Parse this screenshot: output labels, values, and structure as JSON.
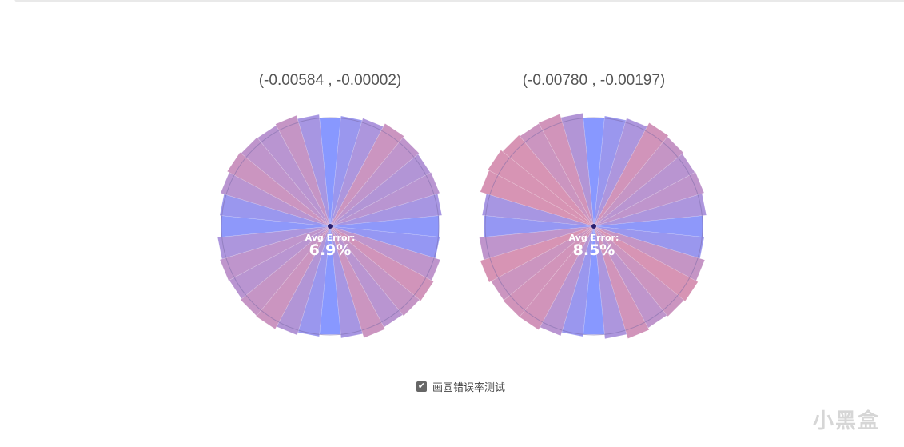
{
  "charts": [
    {
      "title": "(-0.00584 , -0.00002)",
      "avg_label": "Avg Error:",
      "avg_value": "6.9%",
      "chart_data": {
        "type": "polar-bar",
        "title": "(-0.00584 , -0.00002)",
        "segments": 32,
        "errors": [
          0.0,
          0.03,
          0.06,
          0.11,
          0.09,
          0.07,
          0.08,
          0.05,
          0.01,
          0.02,
          0.09,
          0.12,
          0.1,
          0.08,
          0.11,
          0.05,
          0.0,
          0.03,
          0.07,
          0.11,
          0.1,
          0.08,
          0.09,
          0.06,
          0.01,
          0.03,
          0.08,
          0.11,
          0.09,
          0.08,
          0.1,
          0.05
        ]
      }
    },
    {
      "title": "(-0.00780 , -0.00197)",
      "avg_label": "Avg Error:",
      "avg_value": "8.5%",
      "chart_data": {
        "type": "polar-bar",
        "title": "(-0.00780 , -0.00197)",
        "segments": 32,
        "errors": [
          0.0,
          0.03,
          0.06,
          0.12,
          0.1,
          0.08,
          0.09,
          0.06,
          0.01,
          0.03,
          0.1,
          0.13,
          0.11,
          0.09,
          0.12,
          0.06,
          0.0,
          0.03,
          0.08,
          0.12,
          0.12,
          0.11,
          0.14,
          0.09,
          0.02,
          0.05,
          0.14,
          0.16,
          0.13,
          0.11,
          0.12,
          0.07
        ]
      }
    }
  ],
  "colors": {
    "low": "#7b8dff",
    "high": "#d388ac",
    "center_dot": "#2a1f6e",
    "ring": "#7a6aa8"
  },
  "toggle": {
    "label": "画圆错误率测试",
    "checked": true
  },
  "watermark": "小黑盒"
}
